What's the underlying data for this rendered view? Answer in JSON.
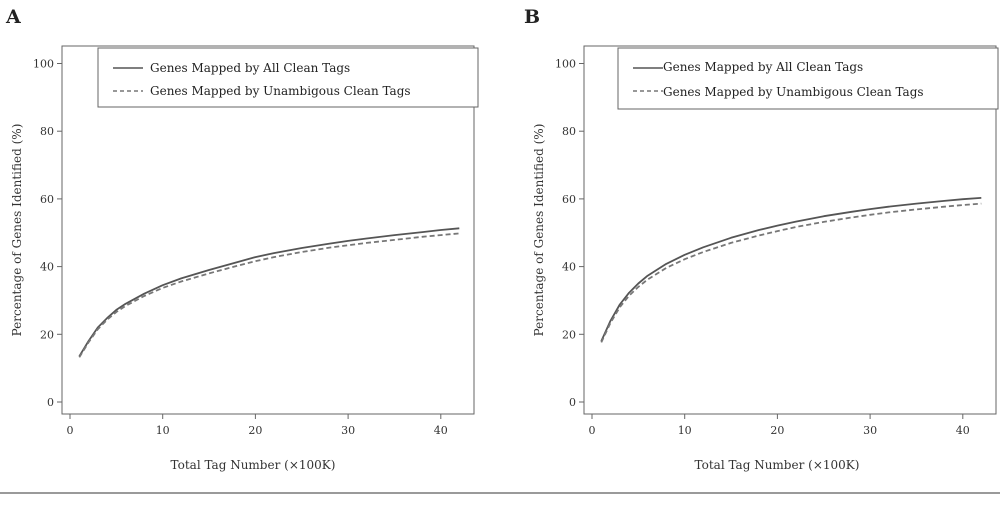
{
  "panels": {
    "a": {
      "label": "A"
    },
    "b": {
      "label": "B"
    }
  },
  "colors": {
    "line": "#555555",
    "dashed": "#777777",
    "axis": "#666666"
  },
  "chart_data": [
    {
      "type": "line",
      "panel": "A",
      "xlabel": "Total Tag Number (×100K)",
      "ylabel": "Percentage of Genes Identified (%)",
      "xlim": [
        0,
        43
      ],
      "ylim": [
        0,
        103
      ],
      "xticks": [
        0,
        10,
        20,
        30,
        40
      ],
      "yticks": [
        0,
        20,
        40,
        60,
        80,
        100
      ],
      "legend_position": "top",
      "series": [
        {
          "name": "Genes Mapped by All Clean Tags",
          "style": "solid",
          "x": [
            1,
            2,
            3,
            4,
            5,
            6,
            8,
            10,
            12,
            15,
            18,
            20,
            22,
            25,
            28,
            30,
            32,
            35,
            38,
            40,
            42
          ],
          "y": [
            13.5,
            18,
            22,
            24.8,
            27.2,
            29,
            32,
            34.5,
            36.5,
            39,
            41.3,
            42.8,
            44,
            45.5,
            46.8,
            47.6,
            48.3,
            49.3,
            50.2,
            50.8,
            51.3
          ]
        },
        {
          "name": "Genes Mapped by Unambigous Clean Tags",
          "style": "dashed",
          "x": [
            1,
            2,
            3,
            4,
            5,
            6,
            8,
            10,
            12,
            15,
            18,
            20,
            22,
            25,
            28,
            30,
            32,
            35,
            38,
            40,
            42
          ],
          "y": [
            13.2,
            17.6,
            21.5,
            24.3,
            26.6,
            28.4,
            31.3,
            33.7,
            35.6,
            38,
            40.2,
            41.6,
            42.8,
            44.3,
            45.6,
            46.3,
            47,
            47.9,
            48.8,
            49.3,
            49.8
          ]
        }
      ]
    },
    {
      "type": "line",
      "panel": "B",
      "xlabel": "Total Tag Number (×100K)",
      "ylabel": "Percentage of Genes Identified (%)",
      "xlim": [
        0,
        43
      ],
      "ylim": [
        0,
        103
      ],
      "xticks": [
        0,
        10,
        20,
        30,
        40
      ],
      "yticks": [
        0,
        20,
        40,
        60,
        80,
        100
      ],
      "legend_position": "top",
      "series": [
        {
          "name": "Genes Mapped by All Clean Tags",
          "style": "solid",
          "x": [
            1,
            2,
            3,
            4,
            5,
            6,
            8,
            10,
            12,
            15,
            18,
            20,
            22,
            25,
            28,
            30,
            32,
            35,
            38,
            40,
            42
          ],
          "y": [
            18,
            24,
            28.8,
            32.3,
            35,
            37.3,
            40.8,
            43.5,
            45.7,
            48.5,
            50.8,
            52.1,
            53.3,
            54.9,
            56.2,
            57,
            57.7,
            58.6,
            59.4,
            59.9,
            60.3
          ]
        },
        {
          "name": "Genes Mapped by Unambigous Clean Tags",
          "style": "dashed",
          "x": [
            1,
            2,
            3,
            4,
            5,
            6,
            8,
            10,
            12,
            15,
            18,
            20,
            22,
            25,
            28,
            30,
            32,
            35,
            38,
            40,
            42
          ],
          "y": [
            17.6,
            23.4,
            28,
            31.4,
            34,
            36.2,
            39.6,
            42.2,
            44.3,
            47,
            49.2,
            50.5,
            51.7,
            53.2,
            54.5,
            55.3,
            56,
            56.9,
            57.7,
            58.2,
            58.6
          ]
        }
      ]
    }
  ]
}
